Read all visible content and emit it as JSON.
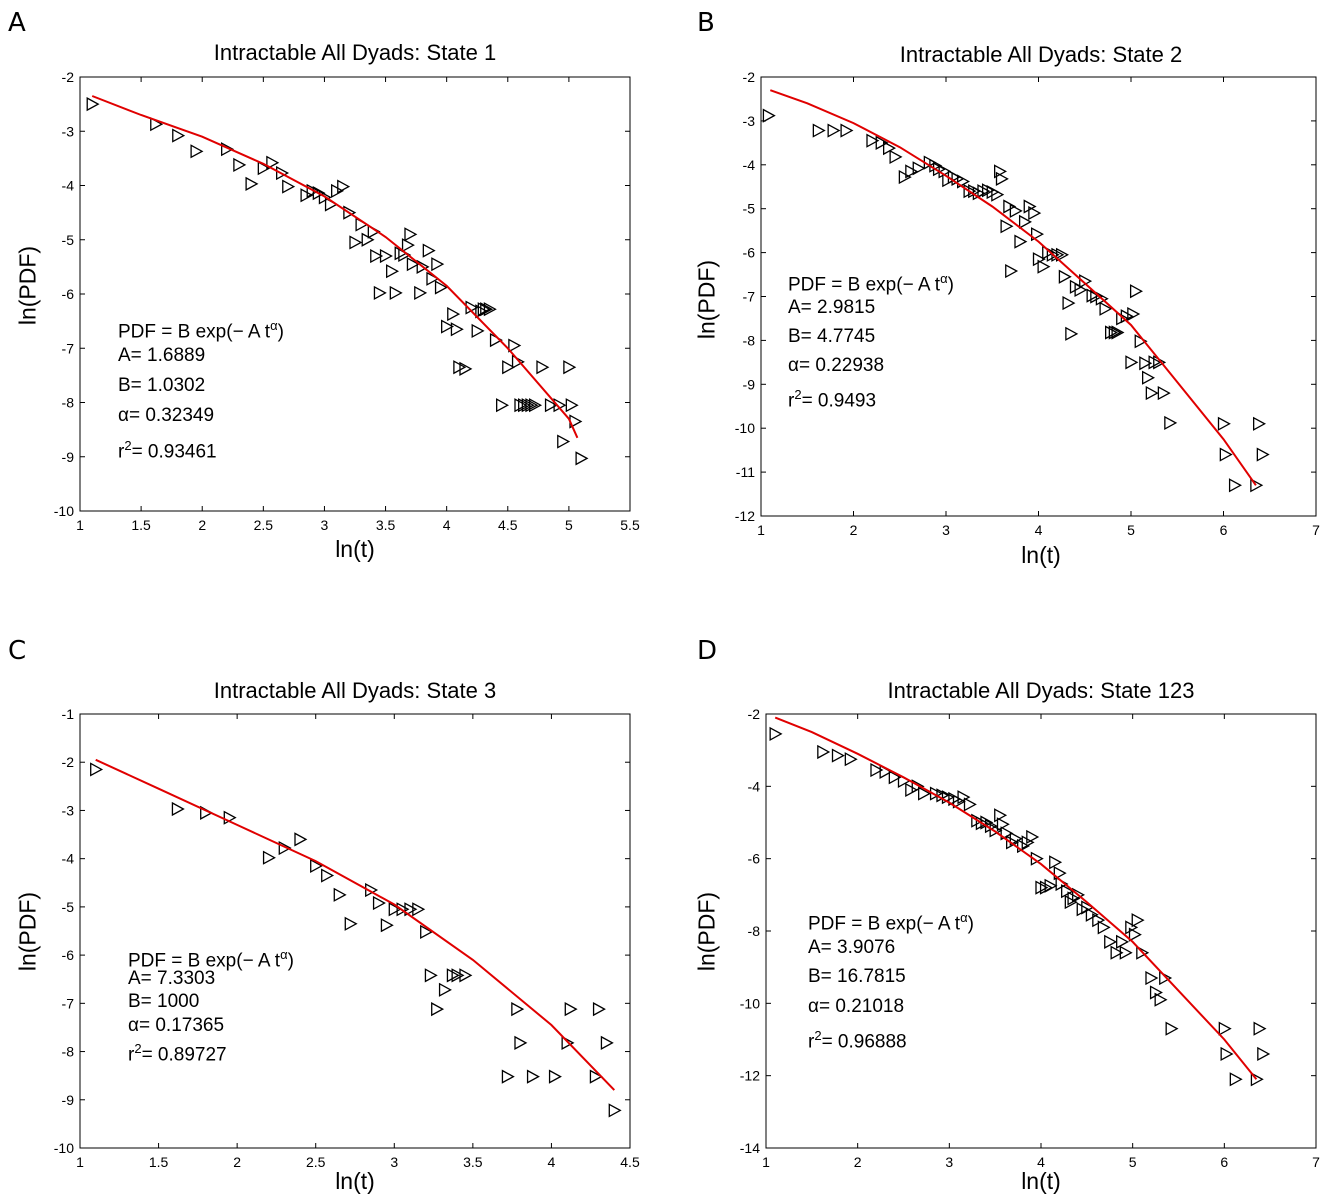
{
  "figure": {
    "panels": [
      "A",
      "B",
      "C",
      "D"
    ]
  },
  "chart_data": [
    {
      "panel": "A",
      "type": "scatter",
      "title": "Intractable All Dyads: State 1",
      "xlabel": "ln(t)",
      "ylabel": "ln(PDF)",
      "xlim": [
        1,
        5.5
      ],
      "ylim": [
        -10,
        -2
      ],
      "xticks": [
        "1",
        "1.5",
        "2",
        "2.5",
        "3",
        "3.5",
        "4",
        "4.5",
        "5",
        "5.5"
      ],
      "yticks": [
        "-2",
        "-3",
        "-4",
        "-5",
        "-6",
        "-7",
        "-8",
        "-9",
        "-10"
      ],
      "annotation": {
        "formula": "PDF = B exp(− A t",
        "formula_sup": "α",
        "formula_end": ")",
        "A": "A= 1.6889",
        "B": "B= 1.0302",
        "alpha": "α= 0.32349",
        "r2_prefix": "r",
        "r2_sup": "2",
        "r2": "= 0.93461"
      },
      "fit_color": "#e00000",
      "fit": [
        [
          1.1,
          -2.35
        ],
        [
          1.5,
          -2.7
        ],
        [
          2.0,
          -3.1
        ],
        [
          2.5,
          -3.6
        ],
        [
          3.0,
          -4.2
        ],
        [
          3.5,
          -4.95
        ],
        [
          4.0,
          -5.85
        ],
        [
          4.5,
          -7.0
        ],
        [
          5.0,
          -8.3
        ],
        [
          5.07,
          -8.65
        ]
      ],
      "points": [
        [
          1.1,
          -2.5
        ],
        [
          1.62,
          -2.87
        ],
        [
          1.8,
          -3.08
        ],
        [
          1.95,
          -3.37
        ],
        [
          2.2,
          -3.33
        ],
        [
          2.3,
          -3.62
        ],
        [
          2.4,
          -3.97
        ],
        [
          2.5,
          -3.68
        ],
        [
          2.57,
          -3.58
        ],
        [
          2.65,
          -3.77
        ],
        [
          2.7,
          -4.02
        ],
        [
          2.85,
          -4.18
        ],
        [
          2.9,
          -4.1
        ],
        [
          2.95,
          -4.14
        ],
        [
          3.0,
          -4.22
        ],
        [
          3.05,
          -4.35
        ],
        [
          3.1,
          -4.1
        ],
        [
          3.15,
          -4.02
        ],
        [
          3.2,
          -4.5
        ],
        [
          3.25,
          -5.05
        ],
        [
          3.3,
          -4.72
        ],
        [
          3.35,
          -5.0
        ],
        [
          3.4,
          -4.85
        ],
        [
          3.42,
          -5.3
        ],
        [
          3.45,
          -5.98
        ],
        [
          3.5,
          -5.3
        ],
        [
          3.55,
          -5.58
        ],
        [
          3.58,
          -5.98
        ],
        [
          3.62,
          -5.25
        ],
        [
          3.65,
          -5.28
        ],
        [
          3.68,
          -5.1
        ],
        [
          3.7,
          -4.9
        ],
        [
          3.72,
          -5.45
        ],
        [
          3.78,
          -5.98
        ],
        [
          3.8,
          -5.5
        ],
        [
          3.85,
          -5.2
        ],
        [
          3.88,
          -5.72
        ],
        [
          3.92,
          -5.45
        ],
        [
          3.95,
          -5.88
        ],
        [
          4.0,
          -6.6
        ],
        [
          4.05,
          -6.37
        ],
        [
          4.08,
          -6.65
        ],
        [
          4.1,
          -7.35
        ],
        [
          4.15,
          -7.38
        ],
        [
          4.2,
          -6.25
        ],
        [
          4.25,
          -6.68
        ],
        [
          4.28,
          -6.32
        ],
        [
          4.3,
          -6.28
        ],
        [
          4.32,
          -6.28
        ],
        [
          4.35,
          -6.28
        ],
        [
          4.4,
          -6.85
        ],
        [
          4.45,
          -8.05
        ],
        [
          4.5,
          -7.35
        ],
        [
          4.55,
          -6.95
        ],
        [
          4.58,
          -7.25
        ],
        [
          4.6,
          -8.05
        ],
        [
          4.63,
          -8.05
        ],
        [
          4.66,
          -8.05
        ],
        [
          4.69,
          -8.05
        ],
        [
          4.72,
          -8.05
        ],
        [
          4.78,
          -7.35
        ],
        [
          4.85,
          -8.05
        ],
        [
          4.92,
          -8.05
        ],
        [
          4.95,
          -8.72
        ],
        [
          5.0,
          -7.35
        ],
        [
          5.02,
          -8.05
        ],
        [
          5.05,
          -8.35
        ],
        [
          5.1,
          -9.03
        ]
      ]
    },
    {
      "panel": "B",
      "type": "scatter",
      "title": "Intractable All Dyads: State 2",
      "xlabel": "ln(t)",
      "ylabel": "ln(PDF)",
      "xlim": [
        1,
        7
      ],
      "ylim": [
        -12,
        -2
      ],
      "xticks": [
        "1",
        "2",
        "3",
        "4",
        "5",
        "6",
        "7"
      ],
      "yticks": [
        "-2",
        "-3",
        "-4",
        "-5",
        "-6",
        "-7",
        "-8",
        "-9",
        "-10",
        "-11",
        "-12"
      ],
      "annotation": {
        "formula": "PDF = B exp(− A t",
        "formula_sup": "α",
        "formula_end": ")",
        "A": "A= 2.9815",
        "B": "B= 4.7745",
        "alpha": "α= 0.22938",
        "r2_prefix": "r",
        "r2_sup": "2",
        "r2": "= 0.9493"
      },
      "fit_color": "#e00000",
      "fit": [
        [
          1.1,
          -2.3
        ],
        [
          1.5,
          -2.6
        ],
        [
          2.0,
          -3.05
        ],
        [
          2.5,
          -3.6
        ],
        [
          3.0,
          -4.25
        ],
        [
          3.5,
          -4.95
        ],
        [
          4.0,
          -5.75
        ],
        [
          4.5,
          -6.7
        ],
        [
          5.0,
          -7.65
        ],
        [
          5.5,
          -8.95
        ],
        [
          6.0,
          -10.25
        ],
        [
          6.35,
          -11.3
        ]
      ],
      "points": [
        [
          1.08,
          -2.88
        ],
        [
          1.62,
          -3.22
        ],
        [
          1.78,
          -3.22
        ],
        [
          1.92,
          -3.22
        ],
        [
          2.2,
          -3.45
        ],
        [
          2.3,
          -3.5
        ],
        [
          2.38,
          -3.62
        ],
        [
          2.45,
          -3.82
        ],
        [
          2.55,
          -4.28
        ],
        [
          2.62,
          -4.15
        ],
        [
          2.7,
          -4.08
        ],
        [
          2.82,
          -3.95
        ],
        [
          2.88,
          -4.02
        ],
        [
          2.92,
          -4.1
        ],
        [
          2.98,
          -4.15
        ],
        [
          3.02,
          -4.35
        ],
        [
          3.08,
          -4.28
        ],
        [
          3.12,
          -4.32
        ],
        [
          3.18,
          -4.38
        ],
        [
          3.25,
          -4.6
        ],
        [
          3.3,
          -4.6
        ],
        [
          3.35,
          -4.65
        ],
        [
          3.4,
          -4.6
        ],
        [
          3.45,
          -4.58
        ],
        [
          3.5,
          -4.62
        ],
        [
          3.55,
          -4.68
        ],
        [
          3.58,
          -4.15
        ],
        [
          3.6,
          -4.32
        ],
        [
          3.65,
          -5.4
        ],
        [
          3.68,
          -4.95
        ],
        [
          3.7,
          -6.42
        ],
        [
          3.75,
          -5.05
        ],
        [
          3.8,
          -5.75
        ],
        [
          3.85,
          -5.3
        ],
        [
          3.9,
          -4.95
        ],
        [
          3.95,
          -5.1
        ],
        [
          3.98,
          -5.58
        ],
        [
          4.0,
          -6.15
        ],
        [
          4.05,
          -6.32
        ],
        [
          4.1,
          -6.0
        ],
        [
          4.15,
          -6.05
        ],
        [
          4.2,
          -6.05
        ],
        [
          4.25,
          -6.05
        ],
        [
          4.28,
          -6.55
        ],
        [
          4.32,
          -7.15
        ],
        [
          4.35,
          -7.85
        ],
        [
          4.4,
          -6.78
        ],
        [
          4.45,
          -6.85
        ],
        [
          4.5,
          -6.65
        ],
        [
          4.58,
          -6.98
        ],
        [
          4.62,
          -7.0
        ],
        [
          4.68,
          -7.05
        ],
        [
          4.72,
          -7.28
        ],
        [
          4.78,
          -7.82
        ],
        [
          4.82,
          -7.82
        ],
        [
          4.85,
          -7.82
        ],
        [
          4.9,
          -7.5
        ],
        [
          4.95,
          -7.45
        ],
        [
          5.0,
          -8.5
        ],
        [
          5.02,
          -7.4
        ],
        [
          5.05,
          -6.88
        ],
        [
          5.1,
          -8.02
        ],
        [
          5.15,
          -8.52
        ],
        [
          5.18,
          -8.85
        ],
        [
          5.22,
          -9.2
        ],
        [
          5.25,
          -8.5
        ],
        [
          5.3,
          -8.5
        ],
        [
          5.35,
          -9.2
        ],
        [
          5.42,
          -9.88
        ],
        [
          6.0,
          -9.9
        ],
        [
          6.02,
          -10.6
        ],
        [
          6.12,
          -11.3
        ],
        [
          6.35,
          -11.3
        ],
        [
          6.38,
          -9.9
        ],
        [
          6.42,
          -10.6
        ]
      ]
    },
    {
      "panel": "C",
      "type": "scatter",
      "title": "Intractable All Dyads: State 3",
      "xlabel": "ln(t)",
      "ylabel": "ln(PDF)",
      "xlim": [
        1,
        4.5
      ],
      "ylim": [
        -10,
        -1
      ],
      "xticks": [
        "1",
        "1.5",
        "2",
        "2.5",
        "3",
        "3.5",
        "4",
        "4.5"
      ],
      "yticks": [
        "-1",
        "-2",
        "-3",
        "-4",
        "-5",
        "-6",
        "-7",
        "-8",
        "-9",
        "-10"
      ],
      "annotation": {
        "formula": "PDF = B exp(− A t",
        "formula_sup": "α",
        "formula_end": ")",
        "A": "A= 7.3303",
        "B": "B= 1000",
        "alpha": "α= 0.17365",
        "r2_prefix": "r",
        "r2_sup": "2",
        "r2": "= 0.89727"
      },
      "fit_color": "#e00000",
      "fit": [
        [
          1.1,
          -1.95
        ],
        [
          1.5,
          -2.55
        ],
        [
          2.0,
          -3.3
        ],
        [
          2.5,
          -4.05
        ],
        [
          3.0,
          -4.95
        ],
        [
          3.5,
          -6.1
        ],
        [
          4.0,
          -7.45
        ],
        [
          4.4,
          -8.8
        ]
      ],
      "points": [
        [
          1.1,
          -2.15
        ],
        [
          1.62,
          -2.97
        ],
        [
          1.8,
          -3.05
        ],
        [
          1.95,
          -3.15
        ],
        [
          2.2,
          -3.98
        ],
        [
          2.3,
          -3.78
        ],
        [
          2.4,
          -3.6
        ],
        [
          2.5,
          -4.15
        ],
        [
          2.57,
          -4.35
        ],
        [
          2.65,
          -4.75
        ],
        [
          2.72,
          -5.35
        ],
        [
          2.85,
          -4.65
        ],
        [
          2.9,
          -4.92
        ],
        [
          2.95,
          -5.38
        ],
        [
          3.0,
          -5.05
        ],
        [
          3.05,
          -5.05
        ],
        [
          3.1,
          -5.05
        ],
        [
          3.15,
          -5.05
        ],
        [
          3.2,
          -5.52
        ],
        [
          3.23,
          -6.42
        ],
        [
          3.27,
          -7.12
        ],
        [
          3.32,
          -6.72
        ],
        [
          3.37,
          -6.42
        ],
        [
          3.4,
          -6.42
        ],
        [
          3.45,
          -6.42
        ],
        [
          3.72,
          -8.52
        ],
        [
          3.78,
          -7.12
        ],
        [
          3.8,
          -7.82
        ],
        [
          3.88,
          -8.52
        ],
        [
          4.02,
          -8.52
        ],
        [
          4.1,
          -7.82
        ],
        [
          4.12,
          -7.12
        ],
        [
          4.28,
          -8.52
        ],
        [
          4.3,
          -7.12
        ],
        [
          4.35,
          -7.82
        ],
        [
          4.4,
          -9.22
        ]
      ]
    },
    {
      "panel": "D",
      "type": "scatter",
      "title": "Intractable All Dyads: State 123",
      "xlabel": "ln(t)",
      "ylabel": "ln(PDF)",
      "xlim": [
        1,
        7
      ],
      "ylim": [
        -14,
        -2
      ],
      "xticks": [
        "1",
        "2",
        "3",
        "4",
        "5",
        "6",
        "7"
      ],
      "yticks": [
        "-2",
        "-4",
        "-6",
        "-8",
        "-10",
        "-12",
        "-14"
      ],
      "annotation": {
        "formula": "PDF = B exp(− A t",
        "formula_sup": "α",
        "formula_end": ")",
        "A": "A= 3.9076",
        "B": "B= 16.7815",
        "alpha": "α= 0.21018",
        "r2_prefix": "r",
        "r2_sup": "2",
        "r2": "= 0.96888"
      },
      "fit_color": "#e00000",
      "fit": [
        [
          1.1,
          -2.1
        ],
        [
          1.5,
          -2.5
        ],
        [
          2.0,
          -3.1
        ],
        [
          2.5,
          -3.75
        ],
        [
          3.0,
          -4.45
        ],
        [
          3.5,
          -5.25
        ],
        [
          4.0,
          -6.15
        ],
        [
          4.5,
          -7.2
        ],
        [
          5.0,
          -8.3
        ],
        [
          5.5,
          -9.65
        ],
        [
          6.0,
          -11.0
        ],
        [
          6.35,
          -12.1
        ]
      ],
      "points": [
        [
          1.1,
          -2.55
        ],
        [
          1.62,
          -3.05
        ],
        [
          1.78,
          -3.15
        ],
        [
          1.92,
          -3.25
        ],
        [
          2.2,
          -3.55
        ],
        [
          2.3,
          -3.6
        ],
        [
          2.4,
          -3.75
        ],
        [
          2.5,
          -3.85
        ],
        [
          2.58,
          -4.1
        ],
        [
          2.65,
          -4.0
        ],
        [
          2.72,
          -4.2
        ],
        [
          2.85,
          -4.2
        ],
        [
          2.92,
          -4.25
        ],
        [
          2.98,
          -4.3
        ],
        [
          3.05,
          -4.35
        ],
        [
          3.1,
          -4.42
        ],
        [
          3.15,
          -4.3
        ],
        [
          3.22,
          -4.5
        ],
        [
          3.3,
          -4.95
        ],
        [
          3.35,
          -5.02
        ],
        [
          3.4,
          -5.0
        ],
        [
          3.45,
          -5.1
        ],
        [
          3.5,
          -5.22
        ],
        [
          3.55,
          -4.8
        ],
        [
          3.58,
          -5.05
        ],
        [
          3.62,
          -5.3
        ],
        [
          3.68,
          -5.55
        ],
        [
          3.72,
          -5.45
        ],
        [
          3.8,
          -5.65
        ],
        [
          3.85,
          -5.55
        ],
        [
          3.9,
          -5.4
        ],
        [
          3.95,
          -6.0
        ],
        [
          4.0,
          -6.8
        ],
        [
          4.05,
          -6.8
        ],
        [
          4.1,
          -6.75
        ],
        [
          4.15,
          -6.1
        ],
        [
          4.2,
          -6.4
        ],
        [
          4.22,
          -6.7
        ],
        [
          4.28,
          -6.9
        ],
        [
          4.32,
          -7.2
        ],
        [
          4.35,
          -7.1
        ],
        [
          4.4,
          -7.0
        ],
        [
          4.45,
          -7.4
        ],
        [
          4.5,
          -7.35
        ],
        [
          4.55,
          -7.55
        ],
        [
          4.62,
          -7.7
        ],
        [
          4.68,
          -7.9
        ],
        [
          4.75,
          -8.3
        ],
        [
          4.82,
          -8.6
        ],
        [
          4.88,
          -8.3
        ],
        [
          4.92,
          -8.6
        ],
        [
          4.98,
          -7.9
        ],
        [
          5.02,
          -8.1
        ],
        [
          5.05,
          -7.7
        ],
        [
          5.1,
          -8.6
        ],
        [
          5.2,
          -9.3
        ],
        [
          5.25,
          -9.7
        ],
        [
          5.3,
          -9.9
        ],
        [
          5.35,
          -9.3
        ],
        [
          5.42,
          -10.7
        ],
        [
          6.0,
          -10.7
        ],
        [
          6.02,
          -11.4
        ],
        [
          6.12,
          -12.1
        ],
        [
          6.35,
          -12.1
        ],
        [
          6.38,
          -10.7
        ],
        [
          6.42,
          -11.4
        ]
      ]
    }
  ]
}
